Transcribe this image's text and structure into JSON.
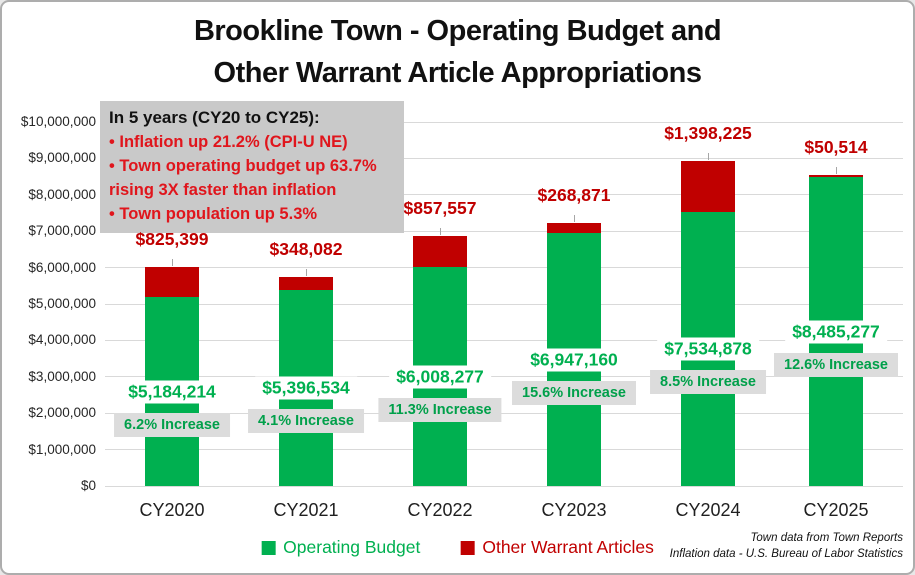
{
  "title": {
    "line1": "Brookline Town - Operating Budget and",
    "line2": "Other Warrant Article Appropriations"
  },
  "annotation": {
    "heading": "In 5 years (CY20 to CY25):",
    "bullets": [
      "• Inflation up 21.2% (CPI-U NE)",
      "• Town operating budget up 63.7% rising 3X faster than inflation",
      "• Town population up 5.3%"
    ],
    "text_color": "#E0151C",
    "background_color": "#C9C9C9"
  },
  "chart_data": {
    "type": "bar",
    "stacked": true,
    "title": "Brookline Town - Operating Budget and Other Warrant Article Appropriations",
    "categories": [
      "CY2020",
      "CY2021",
      "CY2022",
      "CY2023",
      "CY2024",
      "CY2025"
    ],
    "series": [
      {
        "name": "Operating Budget",
        "color": "#00B050",
        "values": [
          5184214,
          5396534,
          6008277,
          6947160,
          7534878,
          8485277
        ],
        "labels": [
          "$5,184,214",
          "$5,396,534",
          "$6,008,277",
          "$6,947,160",
          "$7,534,878",
          "$8,485,277"
        ]
      },
      {
        "name": "Other Warrant Articles",
        "color": "#C00000",
        "values": [
          825399,
          348082,
          857557,
          268871,
          1398225,
          50514
        ],
        "labels": [
          "$825,399",
          "$348,082",
          "$857,557",
          "$268,871",
          "$1,398,225",
          "$50,514"
        ]
      }
    ],
    "increase_labels": [
      "6.2% Increase",
      "4.1% Increase",
      "11.3% Increase",
      "15.6% Increase",
      "8.5% Increase",
      "12.6% Increase"
    ],
    "y_ticks": [
      "$0",
      "$1,000,000",
      "$2,000,000",
      "$3,000,000",
      "$4,000,000",
      "$5,000,000",
      "$6,000,000",
      "$7,000,000",
      "$8,000,000",
      "$9,000,000",
      "$10,000,000"
    ],
    "ylim": [
      0,
      10000000
    ],
    "grid": true,
    "legend_position": "bottom"
  },
  "legend": [
    {
      "label": "Operating Budget",
      "color": "#00B050"
    },
    {
      "label": "Other Warrant Articles",
      "color": "#C00000"
    }
  ],
  "footer": {
    "line1": "Town data from Town Reports",
    "line2": "Inflation data - U.S. Bureau of Labor Statistics"
  }
}
